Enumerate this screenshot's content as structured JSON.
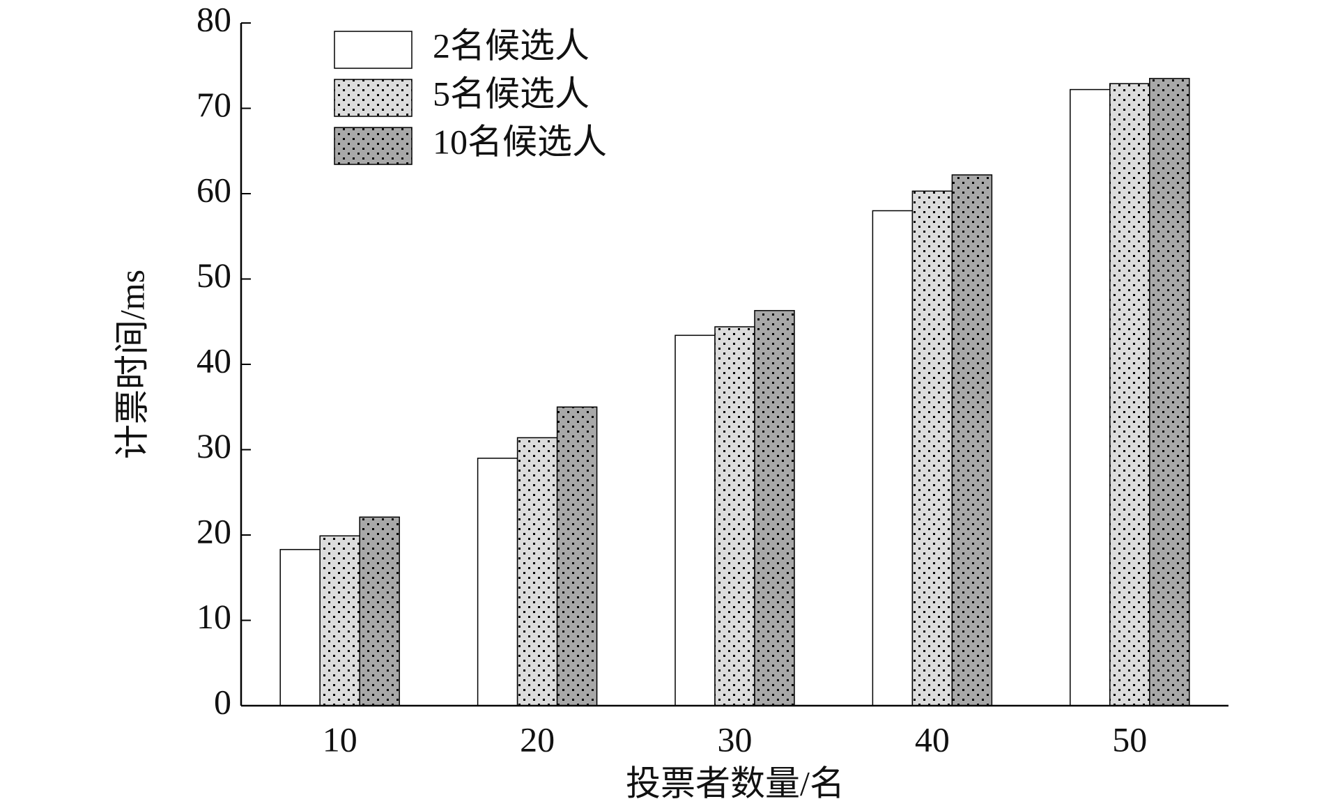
{
  "chart_data": {
    "type": "bar",
    "categories": [
      "10",
      "20",
      "30",
      "40",
      "50"
    ],
    "series": [
      {
        "name": "2名候选人",
        "color": "#ffffff",
        "values": [
          18.3,
          29,
          43.4,
          58,
          72.2
        ]
      },
      {
        "name": "5名候选人",
        "color": "#dcdcdc",
        "values": [
          19.9,
          31.4,
          44.4,
          60.3,
          72.9
        ]
      },
      {
        "name": "10名候选人",
        "color": "#a8a8a8",
        "values": [
          22.1,
          35,
          46.3,
          62.2,
          73.5
        ]
      }
    ],
    "xlabel": "投票者数量/名",
    "ylabel": "计票时间/ms",
    "ylim": [
      0,
      80
    ],
    "yticks": [
      0,
      10,
      20,
      30,
      40,
      50,
      60,
      70,
      80
    ],
    "legend": "upper left"
  }
}
